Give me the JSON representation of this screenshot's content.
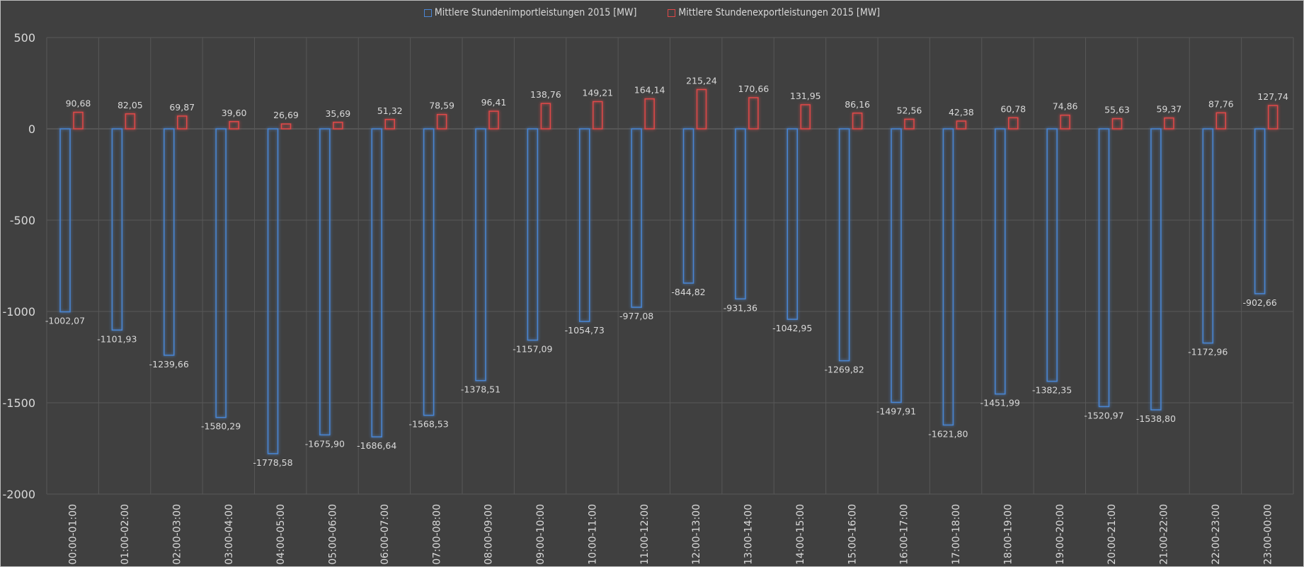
{
  "chart_data": {
    "type": "bar",
    "title": "",
    "xlabel": "",
    "ylabel": "",
    "ylim": [
      -2000,
      500
    ],
    "yticks": [
      500,
      0,
      -500,
      -1000,
      -1500,
      -2000
    ],
    "grid": true,
    "legend_position": "top-center",
    "categories": [
      "00:00-01:00",
      "01:00-02:00",
      "02:00-03:00",
      "03:00-04:00",
      "04:00-05:00",
      "05:00-06:00",
      "06:00-07:00",
      "07:00-08:00",
      "08:00-09:00",
      "09:00-10:00",
      "10:00-11:00",
      "11:00-12:00",
      "12:00-13:00",
      "13:00-14:00",
      "14:00-15:00",
      "15:00-16:00",
      "16:00-17:00",
      "17:00-18:00",
      "18:00-19:00",
      "19:00-20:00",
      "20:00-21:00",
      "21:00-22:00",
      "22:00-23:00",
      "23:00-00:00"
    ],
    "series": [
      {
        "name": "Mittlere Stundenimportleistungen 2015 [MW]",
        "color": "#4a86d4",
        "values": [
          -1002.07,
          -1101.93,
          -1239.66,
          -1580.29,
          -1778.58,
          -1675.9,
          -1686.64,
          -1568.53,
          -1378.51,
          -1157.09,
          -1054.73,
          -977.08,
          -844.82,
          -931.36,
          -1042.95,
          -1269.82,
          -1497.91,
          -1621.8,
          -1451.99,
          -1382.35,
          -1520.97,
          -1538.8,
          -1172.96,
          -902.66
        ]
      },
      {
        "name": "Mittlere Stundenexportleistungen 2015 [MW]",
        "color": "#e04848",
        "values": [
          90.68,
          82.05,
          69.87,
          39.6,
          26.69,
          35.69,
          51.32,
          78.59,
          96.41,
          138.76,
          149.21,
          164.14,
          215.24,
          170.66,
          131.95,
          86.16,
          52.56,
          42.38,
          60.78,
          74.86,
          55.63,
          59.37,
          87.76,
          127.74
        ]
      }
    ]
  }
}
